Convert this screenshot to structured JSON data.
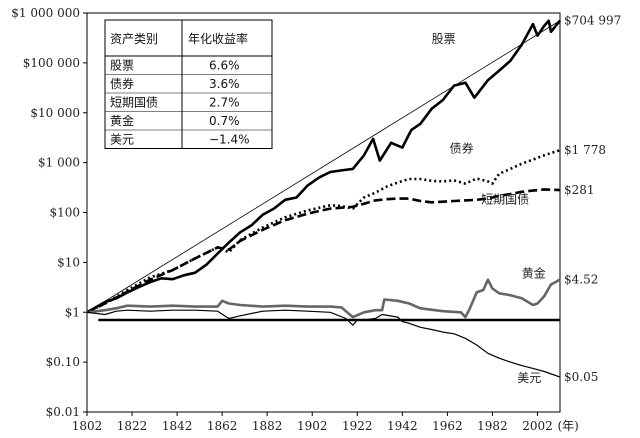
{
  "chart_data": {
    "type": "line",
    "title": "",
    "xlabel": "",
    "ylabel": "",
    "x_unit": "(年)",
    "xlim": [
      1802,
      2012
    ],
    "ylim": [
      0.01,
      1000000
    ],
    "y_scale": "log",
    "y_ticks": [
      {
        "value": 1000000,
        "label": "$1 000 000"
      },
      {
        "value": 100000,
        "label": "$100 000"
      },
      {
        "value": 10000,
        "label": "$10 000"
      },
      {
        "value": 1000,
        "label": "$1 000"
      },
      {
        "value": 100,
        "label": "$100"
      },
      {
        "value": 10,
        "label": "$10"
      },
      {
        "value": 1,
        "label": "$1"
      },
      {
        "value": 0.1,
        "label": "$0.10"
      },
      {
        "value": 0.01,
        "label": "$0.01"
      }
    ],
    "x_ticks": [
      1802,
      1822,
      1842,
      1862,
      1882,
      1902,
      1922,
      1942,
      1962,
      1982,
      2002
    ],
    "grid": false,
    "legend_table": {
      "headers": [
        "资产类别",
        "年化收益率"
      ],
      "rows": [
        [
          "股票",
          "6.6%"
        ],
        [
          "债券",
          "3.6%"
        ],
        [
          "短期国债",
          "2.7%"
        ],
        [
          "黄金",
          "0.7%"
        ],
        [
          "美元",
          "−1.4%"
        ]
      ]
    },
    "series": [
      {
        "name": "股票",
        "end_label": "$704 997",
        "style": "solid-thick",
        "color": "#000000",
        "points": [
          [
            1802,
            1
          ],
          [
            1810,
            1.6
          ],
          [
            1815,
            1.9
          ],
          [
            1820,
            2.5
          ],
          [
            1825,
            3.2
          ],
          [
            1830,
            4
          ],
          [
            1835,
            4.8
          ],
          [
            1840,
            4.6
          ],
          [
            1845,
            5.5
          ],
          [
            1850,
            6.2
          ],
          [
            1855,
            9
          ],
          [
            1860,
            15
          ],
          [
            1865,
            25
          ],
          [
            1870,
            40
          ],
          [
            1875,
            55
          ],
          [
            1880,
            90
          ],
          [
            1885,
            120
          ],
          [
            1890,
            180
          ],
          [
            1895,
            200
          ],
          [
            1900,
            350
          ],
          [
            1905,
            500
          ],
          [
            1910,
            650
          ],
          [
            1915,
            700
          ],
          [
            1920,
            750
          ],
          [
            1925,
            1400
          ],
          [
            1929,
            3000
          ],
          [
            1932,
            1100
          ],
          [
            1937,
            2500
          ],
          [
            1942,
            2000
          ],
          [
            1946,
            4500
          ],
          [
            1950,
            6000
          ],
          [
            1955,
            12000
          ],
          [
            1960,
            18000
          ],
          [
            1965,
            35000
          ],
          [
            1970,
            40000
          ],
          [
            1974,
            20000
          ],
          [
            1980,
            45000
          ],
          [
            1985,
            70000
          ],
          [
            1990,
            110000
          ],
          [
            1995,
            230000
          ],
          [
            2000,
            600000
          ],
          [
            2002,
            350000
          ],
          [
            2005,
            550000
          ],
          [
            2007,
            700000
          ],
          [
            2008,
            420000
          ],
          [
            2012,
            704997
          ]
        ]
      },
      {
        "name": "债券",
        "end_label": "$1 778",
        "style": "dotted",
        "color": "#000000",
        "points": [
          [
            1802,
            1
          ],
          [
            1810,
            1.5
          ],
          [
            1820,
            2.8
          ],
          [
            1830,
            5
          ],
          [
            1840,
            7
          ],
          [
            1850,
            12
          ],
          [
            1860,
            20
          ],
          [
            1865,
            16
          ],
          [
            1870,
            28
          ],
          [
            1880,
            50
          ],
          [
            1890,
            80
          ],
          [
            1900,
            110
          ],
          [
            1910,
            140
          ],
          [
            1915,
            135
          ],
          [
            1920,
            120
          ],
          [
            1925,
            200
          ],
          [
            1930,
            250
          ],
          [
            1935,
            330
          ],
          [
            1940,
            400
          ],
          [
            1945,
            470
          ],
          [
            1950,
            470
          ],
          [
            1955,
            430
          ],
          [
            1960,
            420
          ],
          [
            1965,
            440
          ],
          [
            1970,
            380
          ],
          [
            1975,
            480
          ],
          [
            1980,
            420
          ],
          [
            1982,
            380
          ],
          [
            1985,
            600
          ],
          [
            1990,
            750
          ],
          [
            1995,
            950
          ],
          [
            2000,
            1150
          ],
          [
            2005,
            1400
          ],
          [
            2012,
            1778
          ]
        ]
      },
      {
        "name": "短期国债",
        "end_label": "$281",
        "style": "dashed",
        "color": "#000000",
        "points": [
          [
            1802,
            1
          ],
          [
            1810,
            1.5
          ],
          [
            1820,
            2.6
          ],
          [
            1830,
            4.5
          ],
          [
            1840,
            7
          ],
          [
            1850,
            12
          ],
          [
            1860,
            20
          ],
          [
            1865,
            18
          ],
          [
            1870,
            27
          ],
          [
            1880,
            45
          ],
          [
            1890,
            70
          ],
          [
            1900,
            95
          ],
          [
            1910,
            120
          ],
          [
            1915,
            125
          ],
          [
            1920,
            130
          ],
          [
            1925,
            150
          ],
          [
            1930,
            175
          ],
          [
            1935,
            185
          ],
          [
            1940,
            190
          ],
          [
            1945,
            190
          ],
          [
            1950,
            170
          ],
          [
            1955,
            160
          ],
          [
            1960,
            165
          ],
          [
            1965,
            170
          ],
          [
            1970,
            175
          ],
          [
            1975,
            180
          ],
          [
            1980,
            190
          ],
          [
            1985,
            215
          ],
          [
            1990,
            235
          ],
          [
            1995,
            260
          ],
          [
            2000,
            275
          ],
          [
            2005,
            290
          ],
          [
            2012,
            281
          ]
        ]
      },
      {
        "name": "黄金",
        "end_label": "$4.52",
        "style": "solid-gray",
        "color": "#666666",
        "points": [
          [
            1802,
            1
          ],
          [
            1810,
            1.1
          ],
          [
            1815,
            1.2
          ],
          [
            1820,
            1.35
          ],
          [
            1830,
            1.3
          ],
          [
            1840,
            1.35
          ],
          [
            1850,
            1.3
          ],
          [
            1860,
            1.3
          ],
          [
            1862,
            1.7
          ],
          [
            1865,
            1.5
          ],
          [
            1870,
            1.4
          ],
          [
            1880,
            1.3
          ],
          [
            1890,
            1.35
          ],
          [
            1900,
            1.3
          ],
          [
            1910,
            1.3
          ],
          [
            1915,
            1.25
          ],
          [
            1920,
            0.8
          ],
          [
            1925,
            1
          ],
          [
            1930,
            1.1
          ],
          [
            1933,
            1.1
          ],
          [
            1934,
            1.8
          ],
          [
            1940,
            1.7
          ],
          [
            1945,
            1.5
          ],
          [
            1950,
            1.2
          ],
          [
            1960,
            1.05
          ],
          [
            1968,
            1
          ],
          [
            1970,
            0.8
          ],
          [
            1972,
            1.2
          ],
          [
            1975,
            2.5
          ],
          [
            1978,
            2.8
          ],
          [
            1980,
            4.5
          ],
          [
            1982,
            3
          ],
          [
            1985,
            2.4
          ],
          [
            1990,
            2.2
          ],
          [
            1995,
            1.9
          ],
          [
            2000,
            1.4
          ],
          [
            2002,
            1.5
          ],
          [
            2005,
            2.1
          ],
          [
            2008,
            3.6
          ],
          [
            2012,
            4.52
          ]
        ]
      },
      {
        "name": "美元",
        "end_label": "$0.05",
        "style": "solid-thin",
        "color": "#000000",
        "points": [
          [
            1802,
            1
          ],
          [
            1810,
            0.9
          ],
          [
            1815,
            1.05
          ],
          [
            1820,
            1.1
          ],
          [
            1830,
            1.05
          ],
          [
            1840,
            1.1
          ],
          [
            1850,
            1.1
          ],
          [
            1860,
            1.05
          ],
          [
            1865,
            0.75
          ],
          [
            1870,
            0.85
          ],
          [
            1880,
            1.05
          ],
          [
            1890,
            1.1
          ],
          [
            1900,
            1.05
          ],
          [
            1910,
            1.0
          ],
          [
            1917,
            0.75
          ],
          [
            1920,
            0.55
          ],
          [
            1922,
            0.7
          ],
          [
            1925,
            0.7
          ],
          [
            1930,
            0.75
          ],
          [
            1933,
            0.9
          ],
          [
            1940,
            0.8
          ],
          [
            1942,
            0.65
          ],
          [
            1945,
            0.6
          ],
          [
            1950,
            0.5
          ],
          [
            1955,
            0.45
          ],
          [
            1960,
            0.4
          ],
          [
            1965,
            0.37
          ],
          [
            1970,
            0.3
          ],
          [
            1975,
            0.22
          ],
          [
            1980,
            0.15
          ],
          [
            1985,
            0.12
          ],
          [
            1990,
            0.1
          ],
          [
            1995,
            0.085
          ],
          [
            2000,
            0.075
          ],
          [
            2005,
            0.065
          ],
          [
            2012,
            0.05
          ]
        ]
      },
      {
        "name": "股票趋势线",
        "style": "thin-trend",
        "color": "#000000",
        "points": [
          [
            1802,
            1
          ],
          [
            2012,
            704997
          ]
        ]
      },
      {
        "name": "参考水平线",
        "style": "solid-thick-flat",
        "color": "#000000",
        "points": [
          [
            1807,
            0.7
          ],
          [
            2012,
            0.7
          ]
        ]
      }
    ],
    "series_labels": [
      {
        "text": "股票",
        "x": 1955,
        "y": 250000
      },
      {
        "text": "债券",
        "x": 1963,
        "y": 1600
      },
      {
        "text": "短期国债",
        "x": 1977,
        "y": 150
      },
      {
        "text": "黄金",
        "x": 1995,
        "y": 5
      },
      {
        "text": "美元",
        "x": 1993,
        "y": 0.04
      }
    ]
  }
}
